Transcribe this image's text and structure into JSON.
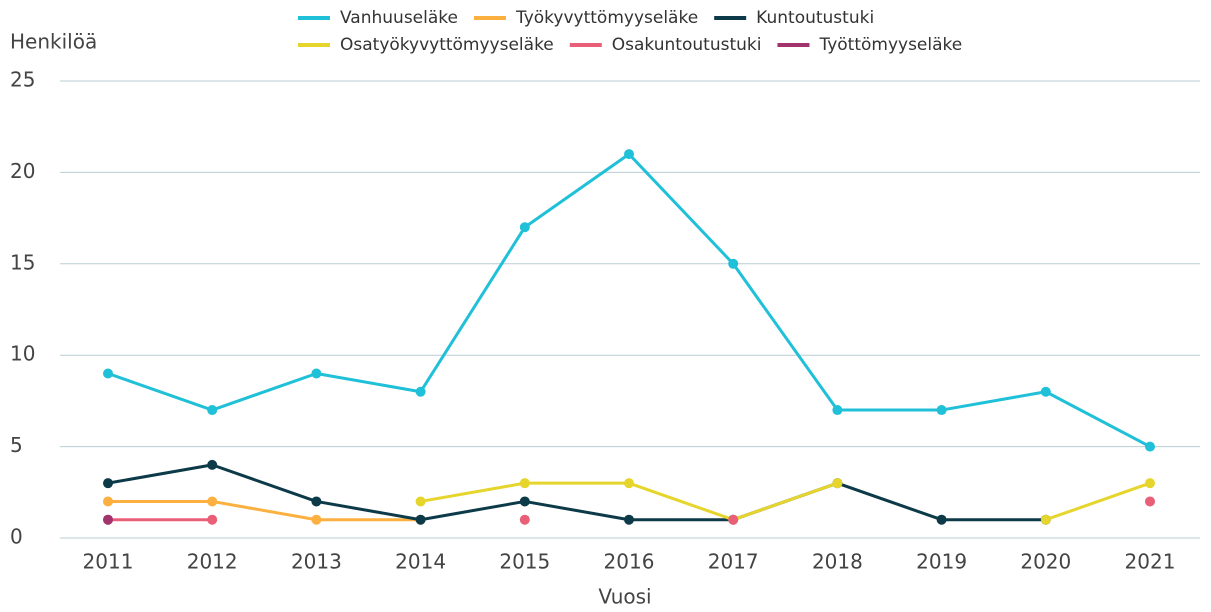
{
  "chart_data": {
    "type": "line",
    "y_label": "Henkilöä",
    "x_label": "Vuosi",
    "categories": [
      "2011",
      "2012",
      "2013",
      "2014",
      "2015",
      "2016",
      "2017",
      "2018",
      "2019",
      "2020",
      "2021"
    ],
    "series": [
      {
        "name": "Vanhuuseläke",
        "color": "#1fc0d8",
        "values": [
          9,
          7,
          9,
          8,
          17,
          21,
          15,
          7,
          7,
          8,
          5
        ]
      },
      {
        "name": "Työkyvyttömyyseläke",
        "color": "#fbb040",
        "values": [
          2,
          2,
          1,
          1,
          null,
          null,
          null,
          null,
          null,
          null,
          null
        ]
      },
      {
        "name": "Kuntoutustuki",
        "color": "#0d3a48",
        "values": [
          3,
          4,
          2,
          1,
          2,
          1,
          1,
          3,
          1,
          1,
          null
        ]
      },
      {
        "name": "Osatyökyvyttömyyseläke",
        "color": "#e6d52c",
        "values": [
          null,
          null,
          null,
          2,
          3,
          3,
          1,
          3,
          null,
          1,
          3
        ]
      },
      {
        "name": "Osakuntoutustuki",
        "color": "#ea5f78",
        "values": [
          1,
          1,
          null,
          null,
          1,
          null,
          1,
          null,
          null,
          null,
          2
        ]
      },
      {
        "name": "Työttömyyseläke",
        "color": "#a3336d",
        "values": [
          1,
          null,
          null,
          null,
          null,
          null,
          null,
          null,
          null,
          null,
          null
        ]
      }
    ],
    "ylim": [
      0,
      25
    ],
    "yticks": [
      0,
      5,
      10,
      15,
      20,
      25
    ],
    "grid": true
  }
}
